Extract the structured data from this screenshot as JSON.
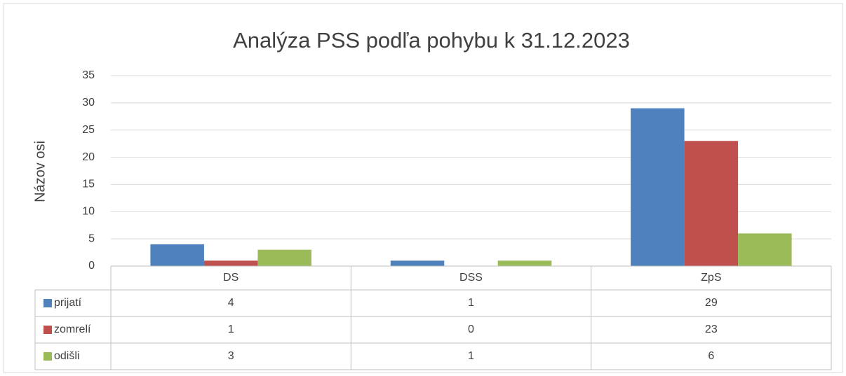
{
  "chart_data": {
    "type": "bar",
    "title": "Analýza PSS podľa pohybu k 31.12.2023",
    "y_label": "Názov osi",
    "categories": [
      "DS",
      "DSS",
      "ZpS"
    ],
    "series": [
      {
        "name": "prijatí",
        "color": "#4f81bd",
        "values": [
          4,
          1,
          29
        ]
      },
      {
        "name": "zomrelí",
        "color": "#c0504d",
        "values": [
          1,
          0,
          23
        ]
      },
      {
        "name": "odišli",
        "color": "#9bbb59",
        "values": [
          3,
          1,
          6
        ]
      }
    ],
    "ylim": [
      0,
      35
    ],
    "yticks": [
      0,
      5,
      10,
      15,
      20,
      25,
      30,
      35
    ],
    "grid": true,
    "data_table": true
  }
}
